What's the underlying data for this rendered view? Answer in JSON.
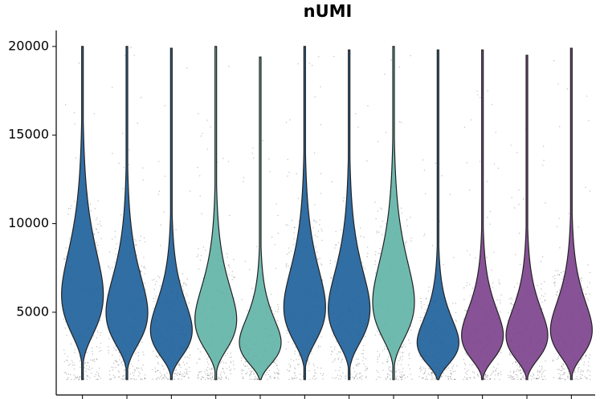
{
  "chart_data": {
    "type": "violin",
    "title": "nUMI",
    "categories": [
      null,
      null,
      null,
      null,
      null,
      null,
      null,
      null,
      null,
      null,
      null,
      null
    ],
    "violins": [
      {
        "color": "#1b5e9a",
        "min": 1200,
        "peak": 6000,
        "max": 20000
      },
      {
        "color": "#1b5e9a",
        "min": 1200,
        "peak": 5000,
        "max": 20000
      },
      {
        "color": "#1b5e9a",
        "min": 1200,
        "peak": 4000,
        "max": 19900
      },
      {
        "color": "#5fb3a6",
        "min": 1200,
        "peak": 4600,
        "max": 20000
      },
      {
        "color": "#5fb3a6",
        "min": 1200,
        "peak": 3300,
        "max": 19400
      },
      {
        "color": "#1b5e9a",
        "min": 1200,
        "peak": 5300,
        "max": 20000
      },
      {
        "color": "#1b5e9a",
        "min": 1200,
        "peak": 5200,
        "max": 19800
      },
      {
        "color": "#5fb3a6",
        "min": 1200,
        "peak": 5600,
        "max": 20000
      },
      {
        "color": "#1b5e9a",
        "min": 1200,
        "peak": 3300,
        "max": 19800
      },
      {
        "color": "#7b3f8c",
        "min": 1200,
        "peak": 3700,
        "max": 19800
      },
      {
        "color": "#7b3f8c",
        "min": 1200,
        "peak": 3700,
        "max": 19500
      },
      {
        "color": "#7b3f8c",
        "min": 1200,
        "peak": 4000,
        "max": 19900
      }
    ],
    "ylim": [
      330,
      20900
    ],
    "yticks": [
      5000,
      10000,
      15000,
      20000
    ]
  }
}
